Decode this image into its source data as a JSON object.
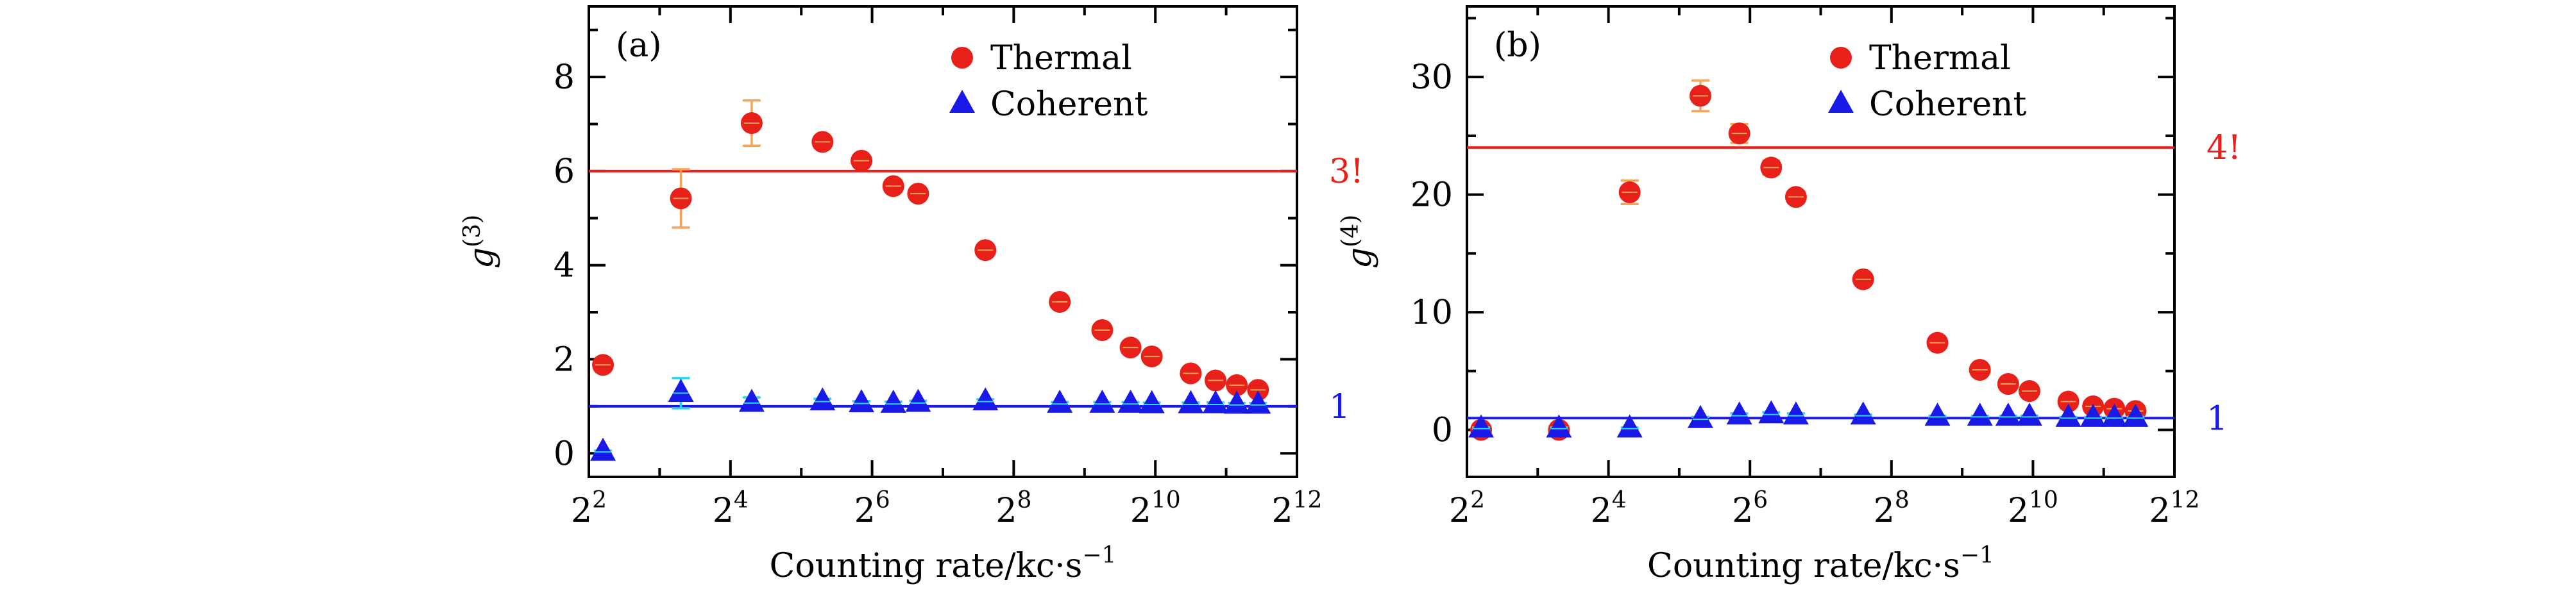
{
  "chart_data": [
    {
      "type": "scatter",
      "panel_label": "(a)",
      "ylabel_base": "g",
      "ylabel_sup": "(3)",
      "xlabel": "Counting rate/kc·s",
      "xlabel_sup": "−1",
      "x_scale": "log2",
      "xlim_log2": [
        2,
        12
      ],
      "ylim": [
        -0.5,
        9.5
      ],
      "x_ticks": [
        {
          "base": "2",
          "exp": "2"
        },
        {
          "base": "2",
          "exp": "4"
        },
        {
          "base": "2",
          "exp": "6"
        },
        {
          "base": "2",
          "exp": "8"
        },
        {
          "base": "2",
          "exp": "10"
        },
        {
          "base": "2",
          "exp": "12"
        }
      ],
      "y_ticks": [
        "0",
        "2",
        "4",
        "6",
        "8"
      ],
      "legend": [
        "Thermal",
        "Coherent"
      ],
      "reference_lines": [
        {
          "y": 6,
          "label": "3!",
          "color": "#e8201a"
        },
        {
          "y": 1,
          "label": "1",
          "color": "#1a1ae8"
        }
      ],
      "series": [
        {
          "name": "Thermal",
          "marker": "circle",
          "color": "#e8201a",
          "error_color": "#f5a55a",
          "points": [
            {
              "x_log2": 2.2,
              "y": 1.88,
              "err": 0.1
            },
            {
              "x_log2": 3.3,
              "y": 5.42,
              "err": 0.62
            },
            {
              "x_log2": 4.3,
              "y": 7.02,
              "err": 0.48
            },
            {
              "x_log2": 5.3,
              "y": 6.62,
              "err": 0.1
            },
            {
              "x_log2": 5.85,
              "y": 6.22,
              "err": 0.1
            },
            {
              "x_log2": 6.3,
              "y": 5.68,
              "err": 0.12
            },
            {
              "x_log2": 6.65,
              "y": 5.52,
              "err": 0.1
            },
            {
              "x_log2": 7.6,
              "y": 4.32,
              "err": 0.1
            },
            {
              "x_log2": 8.65,
              "y": 3.22,
              "err": 0.08
            },
            {
              "x_log2": 9.25,
              "y": 2.62,
              "err": 0.08
            },
            {
              "x_log2": 9.65,
              "y": 2.25,
              "err": 0.08
            },
            {
              "x_log2": 9.95,
              "y": 2.06,
              "err": 0.06
            },
            {
              "x_log2": 10.5,
              "y": 1.7,
              "err": 0.06
            },
            {
              "x_log2": 10.85,
              "y": 1.55,
              "err": 0.06
            },
            {
              "x_log2": 11.15,
              "y": 1.45,
              "err": 0.05
            },
            {
              "x_log2": 11.45,
              "y": 1.35,
              "err": 0.05
            }
          ]
        },
        {
          "name": "Coherent",
          "marker": "triangle",
          "color": "#1a1ae8",
          "error_color": "#2bd6e8",
          "points": [
            {
              "x_log2": 2.2,
              "y": 0.03,
              "err": 0.03
            },
            {
              "x_log2": 3.3,
              "y": 1.28,
              "err": 0.32
            },
            {
              "x_log2": 4.3,
              "y": 1.07,
              "err": 0.12
            },
            {
              "x_log2": 5.3,
              "y": 1.1,
              "err": 0.06
            },
            {
              "x_log2": 5.85,
              "y": 1.06,
              "err": 0.05
            },
            {
              "x_log2": 6.3,
              "y": 1.05,
              "err": 0.05
            },
            {
              "x_log2": 6.65,
              "y": 1.07,
              "err": 0.05
            },
            {
              "x_log2": 7.6,
              "y": 1.1,
              "err": 0.05
            },
            {
              "x_log2": 8.65,
              "y": 1.05,
              "err": 0.04
            },
            {
              "x_log2": 9.25,
              "y": 1.05,
              "err": 0.04
            },
            {
              "x_log2": 9.65,
              "y": 1.05,
              "err": 0.04
            },
            {
              "x_log2": 9.95,
              "y": 1.04,
              "err": 0.04
            },
            {
              "x_log2": 10.5,
              "y": 1.04,
              "err": 0.04
            },
            {
              "x_log2": 10.85,
              "y": 1.04,
              "err": 0.04
            },
            {
              "x_log2": 11.15,
              "y": 1.03,
              "err": 0.04
            },
            {
              "x_log2": 11.45,
              "y": 1.03,
              "err": 0.04
            }
          ]
        }
      ]
    },
    {
      "type": "scatter",
      "panel_label": "(b)",
      "ylabel_base": "g",
      "ylabel_sup": "(4)",
      "xlabel": "Counting rate/kc·s",
      "xlabel_sup": "−1",
      "x_scale": "log2",
      "xlim_log2": [
        2,
        12
      ],
      "ylim": [
        -4,
        36
      ],
      "x_ticks": [
        {
          "base": "2",
          "exp": "2"
        },
        {
          "base": "2",
          "exp": "4"
        },
        {
          "base": "2",
          "exp": "6"
        },
        {
          "base": "2",
          "exp": "8"
        },
        {
          "base": "2",
          "exp": "10"
        },
        {
          "base": "2",
          "exp": "12"
        }
      ],
      "y_ticks": [
        "0",
        "10",
        "20",
        "30"
      ],
      "legend": [
        "Thermal",
        "Coherent"
      ],
      "reference_lines": [
        {
          "y": 24,
          "label": "4!",
          "color": "#e8201a"
        },
        {
          "y": 1,
          "label": "1",
          "color": "#1a1ae8"
        }
      ],
      "series": [
        {
          "name": "Thermal",
          "marker": "circle",
          "color": "#e8201a",
          "error_color": "#f5a55a",
          "points": [
            {
              "x_log2": 2.2,
              "y": 0.0,
              "err": 0.3
            },
            {
              "x_log2": 3.3,
              "y": 0.0,
              "err": 0.3
            },
            {
              "x_log2": 4.3,
              "y": 20.2,
              "err": 1.0
            },
            {
              "x_log2": 5.3,
              "y": 28.4,
              "err": 1.3
            },
            {
              "x_log2": 5.85,
              "y": 25.2,
              "err": 0.8
            },
            {
              "x_log2": 6.3,
              "y": 22.3,
              "err": 0.6
            },
            {
              "x_log2": 6.65,
              "y": 19.8,
              "err": 0.5
            },
            {
              "x_log2": 7.6,
              "y": 12.8,
              "err": 0.4
            },
            {
              "x_log2": 8.65,
              "y": 7.4,
              "err": 0.3
            },
            {
              "x_log2": 9.25,
              "y": 5.1,
              "err": 0.3
            },
            {
              "x_log2": 9.65,
              "y": 3.9,
              "err": 0.2
            },
            {
              "x_log2": 9.95,
              "y": 3.3,
              "err": 0.2
            },
            {
              "x_log2": 10.5,
              "y": 2.4,
              "err": 0.2
            },
            {
              "x_log2": 10.85,
              "y": 2.0,
              "err": 0.2
            },
            {
              "x_log2": 11.15,
              "y": 1.8,
              "err": 0.1
            },
            {
              "x_log2": 11.45,
              "y": 1.6,
              "err": 0.1
            }
          ]
        },
        {
          "name": "Coherent",
          "marker": "triangle",
          "color": "#1a1ae8",
          "error_color": "#2bd6e8",
          "points": [
            {
              "x_log2": 2.2,
              "y": 0.1,
              "err": 0.1
            },
            {
              "x_log2": 3.3,
              "y": 0.1,
              "err": 0.1
            },
            {
              "x_log2": 4.3,
              "y": 0.1,
              "err": 0.1
            },
            {
              "x_log2": 5.3,
              "y": 0.9,
              "err": 0.2
            },
            {
              "x_log2": 5.85,
              "y": 1.2,
              "err": 0.2
            },
            {
              "x_log2": 6.3,
              "y": 1.3,
              "err": 0.2
            },
            {
              "x_log2": 6.65,
              "y": 1.2,
              "err": 0.2
            },
            {
              "x_log2": 7.6,
              "y": 1.2,
              "err": 0.1
            },
            {
              "x_log2": 8.65,
              "y": 1.1,
              "err": 0.1
            },
            {
              "x_log2": 9.25,
              "y": 1.1,
              "err": 0.1
            },
            {
              "x_log2": 9.65,
              "y": 1.1,
              "err": 0.1
            },
            {
              "x_log2": 9.95,
              "y": 1.1,
              "err": 0.1
            },
            {
              "x_log2": 10.5,
              "y": 1.0,
              "err": 0.1
            },
            {
              "x_log2": 10.85,
              "y": 1.0,
              "err": 0.1
            },
            {
              "x_log2": 11.15,
              "y": 1.0,
              "err": 0.1
            },
            {
              "x_log2": 11.45,
              "y": 1.0,
              "err": 0.1
            }
          ]
        }
      ]
    }
  ]
}
